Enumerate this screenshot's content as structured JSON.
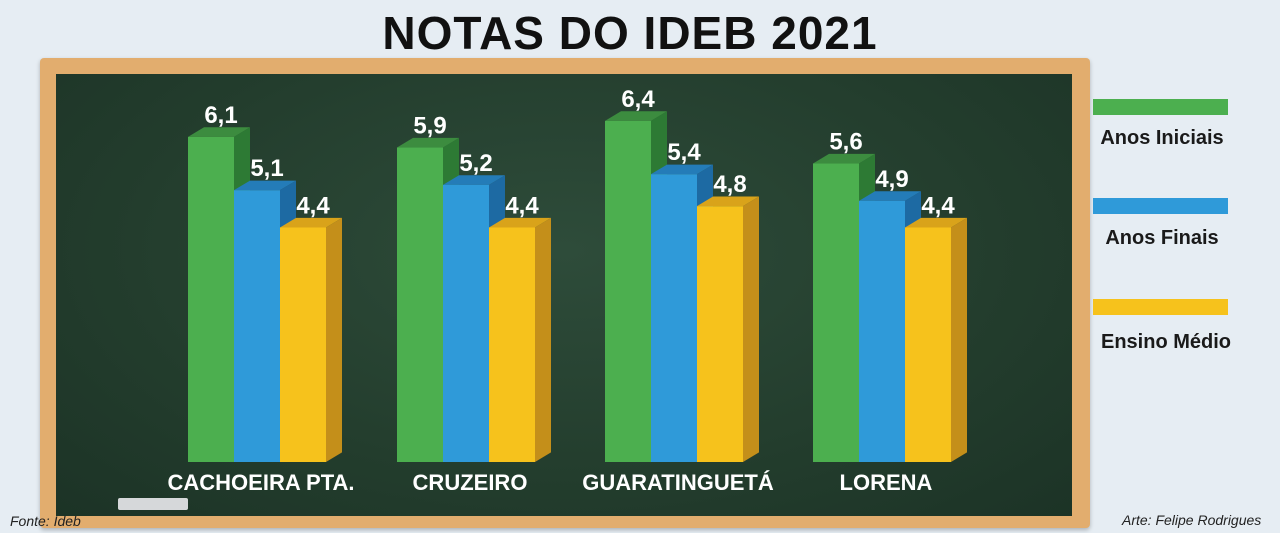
{
  "chart_data": {
    "type": "bar",
    "title": "NOTAS DO IDEB 2021",
    "categories": [
      "CACHOEIRA PTA.",
      "CRUZEIRO",
      "GUARATINGUETÁ",
      "LORENA"
    ],
    "series": [
      {
        "name": "Anos Iniciais",
        "values": [
          6.1,
          5.9,
          6.4,
          5.6
        ],
        "labels": [
          "6,1",
          "5,9",
          "6,4",
          "5,6"
        ]
      },
      {
        "name": "Anos Finais",
        "values": [
          5.1,
          5.2,
          5.4,
          4.9
        ],
        "labels": [
          "5,1",
          "5,2",
          "5,4",
          "4,9"
        ]
      },
      {
        "name": "Ensino Médio",
        "values": [
          4.4,
          4.4,
          4.8,
          4.4
        ],
        "labels": [
          "4,4",
          "4,4",
          "4,8",
          "4,4"
        ]
      }
    ],
    "ylim": [
      0,
      7
    ],
    "xlabel": "",
    "ylabel": "",
    "legend_position": "right",
    "grid": false
  },
  "colors": {
    "series": [
      "#4caf4f",
      "#2f9ad9",
      "#f6c21c"
    ],
    "series_side": [
      "#2d7a34",
      "#1d6aa3",
      "#c48f1a"
    ],
    "series_top": [
      "#3c8c3f",
      "#247cb8",
      "#d9a31a"
    ]
  },
  "footer": {
    "source": "Fonte: Ideb",
    "credit": "Arte: Felipe Rodrigues"
  }
}
